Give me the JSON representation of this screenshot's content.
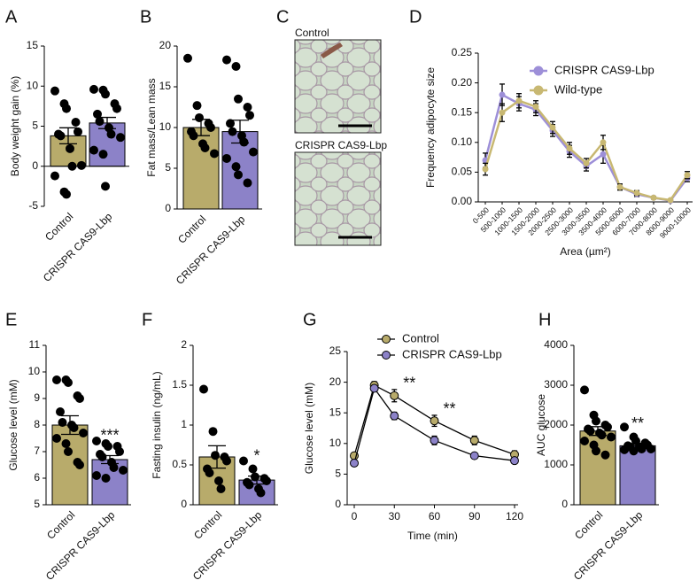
{
  "chart_data": [
    {
      "panel": "A",
      "type": "bar",
      "ylabel": "Body weight gain (%)",
      "categories": [
        "Control",
        "CRISPR CAS9-Lbp"
      ],
      "values": [
        3.8,
        5.4
      ],
      "errors": [
        1.0,
        0.7
      ],
      "colors": [
        "#b8ab6b",
        "#8c82c8"
      ],
      "points": [
        [
          9.4,
          7.8,
          7.2,
          5.5,
          4.3,
          4.0,
          3.8,
          2.2,
          0,
          0.1,
          -1.2,
          -3.2,
          -3.5
        ],
        [
          9.6,
          9.5,
          9.0,
          7.8,
          7.2,
          6.5,
          5.6,
          4.8,
          4.0,
          3.6,
          2.0,
          1.5,
          -2.5
        ]
      ],
      "ylim": [
        -5,
        15
      ],
      "yticks": [
        -5,
        0,
        5,
        10,
        15
      ]
    },
    {
      "panel": "B",
      "type": "bar",
      "ylabel": "Fat mass/Lean mass",
      "categories": [
        "Control",
        "CRISPR CAS9-Lbp"
      ],
      "values": [
        10.0,
        9.5
      ],
      "errors": [
        1.0,
        1.4
      ],
      "colors": [
        "#b8ab6b",
        "#8c82c8"
      ],
      "points": [
        [
          18.5,
          12.7,
          11.2,
          10.5,
          10.0,
          9.5,
          9.0,
          8.0,
          7.5,
          6.8
        ],
        [
          18.3,
          17.5,
          13.5,
          12.5,
          11.5,
          10.5,
          9.5,
          9.0,
          8.2,
          7.0,
          6.2,
          5.2,
          4.2,
          3.2
        ]
      ],
      "ylim": [
        0,
        20
      ],
      "yticks": [
        0,
        5,
        10,
        15,
        20
      ]
    },
    {
      "panel": "D",
      "type": "line",
      "ylabel": "Frequency adipocyte size",
      "xlabel": "Area (µm²)",
      "categories": [
        "0-500",
        "500-1000",
        "1000-1500",
        "1500-2000",
        "2000-2500",
        "2500-3000",
        "3000-3500",
        "3500-4000",
        "5000-6000",
        "6000-7000",
        "7000-8000",
        "8000-9000",
        "9000-10000"
      ],
      "series": [
        {
          "name": "CRISPR CAS9-Lbp",
          "color": "#9d8fd8",
          "values": [
            0.07,
            0.18,
            0.165,
            0.155,
            0.12,
            0.085,
            0.06,
            0.08,
            0.025,
            0.013,
            0.007,
            0.002,
            0.04
          ],
          "errors": [
            0.012,
            0.018,
            0.012,
            0.01,
            0.01,
            0.01,
            0.008,
            0.015,
            0.005,
            0.004,
            0.002,
            0.002,
            0.006
          ]
        },
        {
          "name": "Wild-type",
          "color": "#c8b872",
          "values": [
            0.055,
            0.15,
            0.17,
            0.16,
            0.125,
            0.09,
            0.065,
            0.1,
            0.025,
            0.015,
            0.007,
            0.003,
            0.045
          ],
          "errors": [
            0.01,
            0.015,
            0.012,
            0.01,
            0.01,
            0.01,
            0.008,
            0.012,
            0.005,
            0.004,
            0.002,
            0.002,
            0.006
          ]
        }
      ],
      "ylim": [
        0,
        0.25
      ],
      "yticks": [
        {
          "value": 0,
          "label": "0.00"
        },
        {
          "value": 0.05,
          "label": "0.05"
        },
        {
          "value": 0.1,
          "label": "0.10"
        },
        {
          "value": 0.15,
          "label": "0.15"
        },
        {
          "value": 0.2,
          "label": "0.20"
        },
        {
          "value": 0.25,
          "label": "0.25"
        }
      ],
      "legend": "upper right"
    },
    {
      "panel": "E",
      "type": "bar",
      "ylabel": "Glucose level (mM)",
      "categories": [
        "Control",
        "CRISPR CAS9-Lbp"
      ],
      "values": [
        8.0,
        6.7
      ],
      "errors": [
        0.35,
        0.15
      ],
      "colors": [
        "#b8ab6b",
        "#8c82c8"
      ],
      "points": [
        [
          9.7,
          9.7,
          9.6,
          9.1,
          9.0,
          8.5,
          8.1,
          8.0,
          7.9,
          7.7,
          7.5,
          7.3,
          7.0,
          6.6,
          6.5
        ],
        [
          7.4,
          7.3,
          7.2,
          7.2,
          7.0,
          6.9,
          6.8,
          6.6,
          6.4,
          6.3,
          6.1,
          6.0
        ]
      ],
      "ylim": [
        5,
        11
      ],
      "yticks": [
        5,
        6,
        7,
        8,
        9,
        10,
        11
      ],
      "annotation": "***"
    },
    {
      "panel": "F",
      "type": "bar",
      "ylabel": "Fasting insulin (ng/mL)",
      "categories": [
        "Control",
        "CRISPR CAS9-Lbp"
      ],
      "values": [
        0.6,
        0.31
      ],
      "errors": [
        0.14,
        0.05
      ],
      "colors": [
        "#b8ab6b",
        "#8c82c8"
      ],
      "points": [
        [
          1.45,
          0.92,
          0.62,
          0.6,
          0.55,
          0.45,
          0.4,
          0.3,
          0.2
        ],
        [
          0.55,
          0.45,
          0.35,
          0.33,
          0.3,
          0.28,
          0.25,
          0.2,
          0.15
        ]
      ],
      "ylim": [
        0,
        2
      ],
      "yticks": [
        0,
        0.5,
        1,
        1.5,
        2
      ],
      "annotation": "*"
    },
    {
      "panel": "G",
      "type": "line",
      "ylabel": "Glucose level (mM)",
      "xlabel": "Time (min)",
      "x": [
        0,
        15,
        30,
        60,
        90,
        120
      ],
      "series": [
        {
          "name": "Control",
          "color": "#b8ab6b",
          "values": [
            8.0,
            19.5,
            17.8,
            13.7,
            10.5,
            8.2
          ],
          "errors": [
            0.4,
            0.6,
            1.0,
            0.9,
            0.7,
            0.6
          ]
        },
        {
          "name": "CRISPR CAS9-Lbp",
          "color": "#8c82c8",
          "values": [
            6.8,
            19.0,
            14.5,
            10.5,
            8.0,
            7.2
          ],
          "errors": [
            0.3,
            0.5,
            0.6,
            0.7,
            0.3,
            0.3
          ]
        }
      ],
      "xlim": [
        0,
        120
      ],
      "xticks": [
        0,
        30,
        60,
        90,
        120
      ],
      "ylim": [
        0,
        25
      ],
      "yticks": [
        0,
        5,
        10,
        15,
        20,
        25
      ],
      "annotations": [
        "**",
        "**"
      ],
      "legend": "upper center"
    },
    {
      "panel": "H",
      "type": "bar",
      "ylabel": "AUC glucose",
      "categories": [
        "Control",
        "CRISPR CAS9-Lbp"
      ],
      "values": [
        1850,
        1480
      ],
      "errors": [
        110,
        50
      ],
      "colors": [
        "#b8ab6b",
        "#8c82c8"
      ],
      "points": [
        [
          2880,
          2250,
          2100,
          2000,
          1950,
          1900,
          1850,
          1800,
          1750,
          1700,
          1600,
          1500,
          1350,
          1250
        ],
        [
          1950,
          1700,
          1600,
          1550,
          1500,
          1480,
          1450,
          1450,
          1400,
          1400,
          1380,
          1350
        ]
      ],
      "ylim": [
        0,
        4000
      ],
      "yticks": [
        0,
        1000,
        2000,
        3000,
        4000
      ],
      "annotation": "**"
    }
  ],
  "panel_c": {
    "panel": "C",
    "captions": [
      "Control",
      "CRISPR CAS9-Lbp"
    ]
  }
}
